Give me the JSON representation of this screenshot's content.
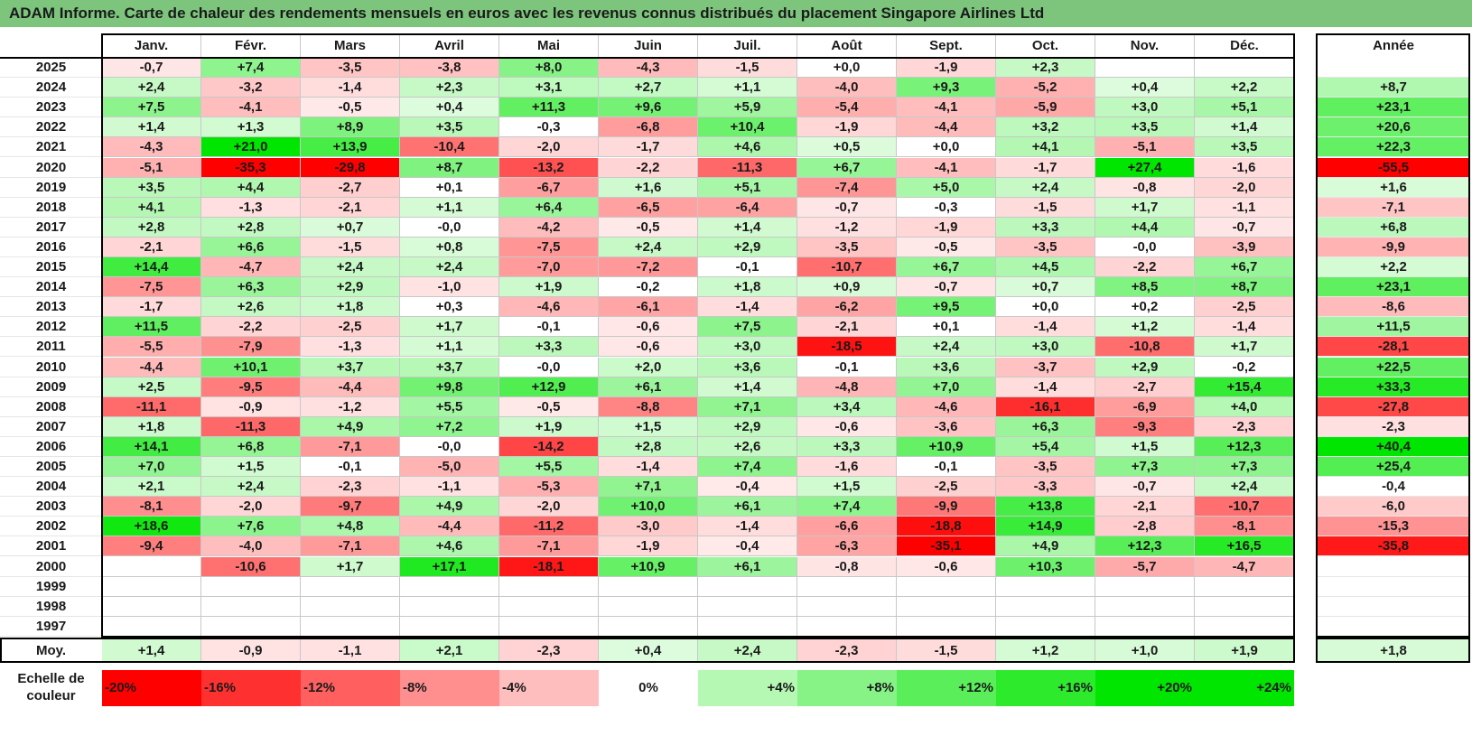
{
  "title": "ADAM Informe. Carte de chaleur des rendements mensuels en euros avec les revenus connus distribués du placement Singapore Airlines Ltd",
  "chart_data": {
    "type": "heatmap",
    "title": "ADAM Informe. Carte de chaleur des rendements mensuels en euros avec les revenus connus distribués du placement Singapore Airlines Ltd",
    "columns": [
      "Janv.",
      "Févr.",
      "Mars",
      "Avril",
      "Mai",
      "Juin",
      "Juil.",
      "Août",
      "Sept.",
      "Oct.",
      "Nov.",
      "Déc."
    ],
    "year_header": "Année",
    "rows": [
      {
        "year": "2025",
        "values": [
          "-0,7",
          "+7,4",
          "-3,5",
          "-3,8",
          "+8,0",
          "-4,3",
          "-1,5",
          "+0,0",
          "-1,9",
          "+2,3",
          "",
          ""
        ],
        "annual": ""
      },
      {
        "year": "2024",
        "values": [
          "+2,4",
          "-3,2",
          "-1,4",
          "+2,3",
          "+3,1",
          "+2,7",
          "+1,1",
          "-4,0",
          "+9,3",
          "-5,2",
          "+0,4",
          "+2,2"
        ],
        "annual": "+8,7"
      },
      {
        "year": "2023",
        "values": [
          "+7,5",
          "-4,1",
          "-0,5",
          "+0,4",
          "+11,3",
          "+9,6",
          "+5,9",
          "-5,4",
          "-4,1",
          "-5,9",
          "+3,0",
          "+5,1"
        ],
        "annual": "+23,1"
      },
      {
        "year": "2022",
        "values": [
          "+1,4",
          "+1,3",
          "+8,9",
          "+3,5",
          "-0,3",
          "-6,8",
          "+10,4",
          "-1,9",
          "-4,4",
          "+3,2",
          "+3,5",
          "+1,4"
        ],
        "annual": "+20,6"
      },
      {
        "year": "2021",
        "values": [
          "-4,3",
          "+21,0",
          "+13,9",
          "-10,4",
          "-2,0",
          "-1,7",
          "+4,6",
          "+0,5",
          "+0,0",
          "+4,1",
          "-5,1",
          "+3,5"
        ],
        "annual": "+22,3"
      },
      {
        "year": "2020",
        "values": [
          "-5,1",
          "-35,3",
          "-29,8",
          "+8,7",
          "-13,2",
          "-2,2",
          "-11,3",
          "+6,7",
          "-4,1",
          "-1,7",
          "+27,4",
          "-1,6"
        ],
        "annual": "-55,5"
      },
      {
        "year": "2019",
        "values": [
          "+3,5",
          "+4,4",
          "-2,7",
          "+0,1",
          "-6,7",
          "+1,6",
          "+5,1",
          "-7,4",
          "+5,0",
          "+2,4",
          "-0,8",
          "-2,0"
        ],
        "annual": "+1,6"
      },
      {
        "year": "2018",
        "values": [
          "+4,1",
          "-1,3",
          "-2,1",
          "+1,1",
          "+6,4",
          "-6,5",
          "-6,4",
          "-0,7",
          "-0,3",
          "-1,5",
          "+1,7",
          "-1,1"
        ],
        "annual": "-7,1"
      },
      {
        "year": "2017",
        "values": [
          "+2,8",
          "+2,8",
          "+0,7",
          "-0,0",
          "-4,2",
          "-0,5",
          "+1,4",
          "-1,2",
          "-1,9",
          "+3,3",
          "+4,4",
          "-0,7"
        ],
        "annual": "+6,8"
      },
      {
        "year": "2016",
        "values": [
          "-2,1",
          "+6,6",
          "-1,5",
          "+0,8",
          "-7,5",
          "+2,4",
          "+2,9",
          "-3,5",
          "-0,5",
          "-3,5",
          "-0,0",
          "-3,9"
        ],
        "annual": "-9,9"
      },
      {
        "year": "2015",
        "values": [
          "+14,4",
          "-4,7",
          "+2,4",
          "+2,4",
          "-7,0",
          "-7,2",
          "-0,1",
          "-10,7",
          "+6,7",
          "+4,5",
          "-2,2",
          "+6,7"
        ],
        "annual": "+2,2"
      },
      {
        "year": "2014",
        "values": [
          "-7,5",
          "+6,3",
          "+2,9",
          "-1,0",
          "+1,9",
          "-0,2",
          "+1,8",
          "+0,9",
          "-0,7",
          "+0,7",
          "+8,5",
          "+8,7"
        ],
        "annual": "+23,1"
      },
      {
        "year": "2013",
        "values": [
          "-1,7",
          "+2,6",
          "+1,8",
          "+0,3",
          "-4,6",
          "-6,1",
          "-1,4",
          "-6,2",
          "+9,5",
          "+0,0",
          "+0,2",
          "-2,5"
        ],
        "annual": "-8,6"
      },
      {
        "year": "2012",
        "values": [
          "+11,5",
          "-2,2",
          "-2,5",
          "+1,7",
          "-0,1",
          "-0,6",
          "+7,5",
          "-2,1",
          "+0,1",
          "-1,4",
          "+1,2",
          "-1,4"
        ],
        "annual": "+11,5"
      },
      {
        "year": "2011",
        "values": [
          "-5,5",
          "-7,9",
          "-1,3",
          "+1,1",
          "+3,3",
          "-0,6",
          "+3,0",
          "-18,5",
          "+2,4",
          "+3,0",
          "-10,8",
          "+1,7"
        ],
        "annual": "-28,1"
      },
      {
        "year": "2010",
        "values": [
          "-4,4",
          "+10,1",
          "+3,7",
          "+3,7",
          "-0,0",
          "+2,0",
          "+3,6",
          "-0,1",
          "+3,6",
          "-3,7",
          "+2,9",
          "-0,2"
        ],
        "annual": "+22,5"
      },
      {
        "year": "2009",
        "values": [
          "+2,5",
          "-9,5",
          "-4,4",
          "+9,8",
          "+12,9",
          "+6,1",
          "+1,4",
          "-4,8",
          "+7,0",
          "-1,4",
          "-2,7",
          "+15,4"
        ],
        "annual": "+33,3"
      },
      {
        "year": "2008",
        "values": [
          "-11,1",
          "-0,9",
          "-1,2",
          "+5,5",
          "-0,5",
          "-8,8",
          "+7,1",
          "+3,4",
          "-4,6",
          "-16,1",
          "-6,9",
          "+4,0"
        ],
        "annual": "-27,8"
      },
      {
        "year": "2007",
        "values": [
          "+1,8",
          "-11,3",
          "+4,9",
          "+7,2",
          "+1,9",
          "+1,5",
          "+2,9",
          "-0,6",
          "-3,6",
          "+6,3",
          "-9,3",
          "-2,3"
        ],
        "annual": "-2,3"
      },
      {
        "year": "2006",
        "values": [
          "+14,1",
          "+6,8",
          "-7,1",
          "-0,0",
          "-14,2",
          "+2,8",
          "+2,6",
          "+3,3",
          "+10,9",
          "+5,4",
          "+1,5",
          "+12,3"
        ],
        "annual": "+40,4"
      },
      {
        "year": "2005",
        "values": [
          "+7,0",
          "+1,5",
          "-0,1",
          "-5,0",
          "+5,5",
          "-1,4",
          "+7,4",
          "-1,6",
          "-0,1",
          "-3,5",
          "+7,3",
          "+7,3"
        ],
        "annual": "+25,4"
      },
      {
        "year": "2004",
        "values": [
          "+2,1",
          "+2,4",
          "-2,3",
          "-1,1",
          "-5,3",
          "+7,1",
          "-0,4",
          "+1,5",
          "-2,5",
          "-3,3",
          "-0,7",
          "+2,4"
        ],
        "annual": "-0,4"
      },
      {
        "year": "2003",
        "values": [
          "-8,1",
          "-2,0",
          "-9,7",
          "+4,9",
          "-2,0",
          "+10,0",
          "+6,1",
          "+7,4",
          "-9,9",
          "+13,8",
          "-2,1",
          "-10,7"
        ],
        "annual": "-6,0"
      },
      {
        "year": "2002",
        "values": [
          "+18,6",
          "+7,6",
          "+4,8",
          "-4,4",
          "-11,2",
          "-3,0",
          "-1,4",
          "-6,6",
          "-18,8",
          "+14,9",
          "-2,8",
          "-8,1"
        ],
        "annual": "-15,3"
      },
      {
        "year": "2001",
        "values": [
          "-9,4",
          "-4,0",
          "-7,1",
          "+4,6",
          "-7,1",
          "-1,9",
          "-0,4",
          "-6,3",
          "-35,1",
          "+4,9",
          "+12,3",
          "+16,5"
        ],
        "annual": "-35,8"
      },
      {
        "year": "2000",
        "values": [
          "",
          "-10,6",
          "+1,7",
          "+17,1",
          "-18,1",
          "+10,9",
          "+6,1",
          "-0,8",
          "-0,6",
          "+10,3",
          "-5,7",
          "-4,7"
        ],
        "annual": ""
      },
      {
        "year": "1999",
        "values": [
          "",
          "",
          "",
          "",
          "",
          "",
          "",
          "",
          "",
          "",
          "",
          ""
        ],
        "annual": ""
      },
      {
        "year": "1998",
        "values": [
          "",
          "",
          "",
          "",
          "",
          "",
          "",
          "",
          "",
          "",
          "",
          ""
        ],
        "annual": ""
      },
      {
        "year": "1997",
        "values": [
          "",
          "",
          "",
          "",
          "",
          "",
          "",
          "",
          "",
          "",
          "",
          ""
        ],
        "annual": ""
      }
    ],
    "average": {
      "label": "Moy.",
      "values": [
        "+1,4",
        "-0,9",
        "-1,1",
        "+2,1",
        "-2,3",
        "+0,4",
        "+2,4",
        "-2,3",
        "-1,5",
        "+1,2",
        "+1,0",
        "+1,9"
      ],
      "annual": "+1,8"
    },
    "scale": {
      "label_line1": "Echelle de",
      "label_line2": "couleur",
      "stops": [
        "-20%",
        "-16%",
        "-12%",
        "-8%",
        "-4%",
        "0%",
        "+4%",
        "+8%",
        "+12%",
        "+16%",
        "+20%",
        "+24%"
      ]
    },
    "colors": {
      "title_bg": "#7dc57d",
      "negative": "#ff0000",
      "positive": "#00e000",
      "neutral": "#ffffff"
    }
  }
}
